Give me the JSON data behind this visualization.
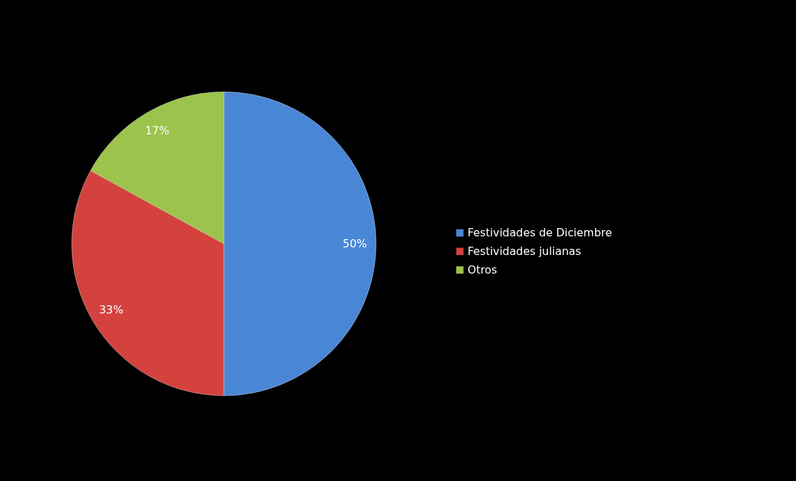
{
  "chart_data": {
    "type": "pie",
    "categories": [
      "Festividades de Diciembre",
      "Festividades julianas",
      "Otros"
    ],
    "values": [
      50,
      33,
      17
    ],
    "colors": [
      "#4a86d6",
      "#d4423e",
      "#9cc34b"
    ],
    "value_labels": [
      "50%",
      "33%",
      "17%"
    ],
    "legend": "right"
  }
}
